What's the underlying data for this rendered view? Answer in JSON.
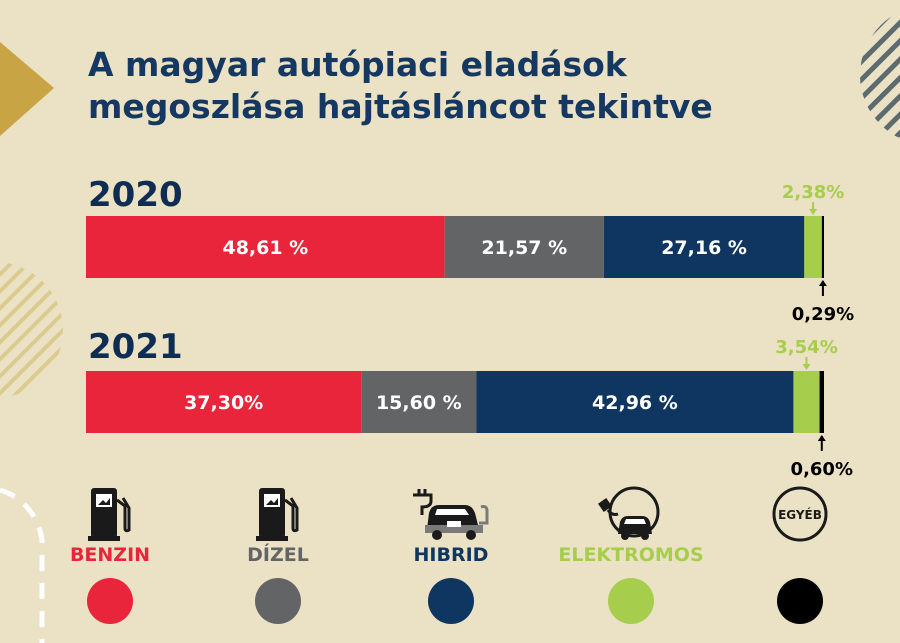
{
  "title_line1": "A magyar autópiaci eladások",
  "title_line2": "megoszlása hajtásláncot tekintve",
  "colors": {
    "benzin": "#e8253a",
    "dizel": "#636465",
    "hibrid": "#0f3660",
    "elektromos": "#a6cd4b",
    "egyeb": "#000000",
    "background": "#ebe1c4"
  },
  "chart_data": {
    "type": "bar",
    "orientation": "horizontal-stacked-100",
    "categories": [
      "2020",
      "2021"
    ],
    "series": [
      {
        "name": "BENZIN",
        "values": [
          48.61,
          37.3
        ],
        "labels": [
          "48,61 %",
          "37,30%"
        ],
        "color": "#e8253a"
      },
      {
        "name": "DÍZEL",
        "values": [
          21.57,
          15.6
        ],
        "labels": [
          "21,57 %",
          "15,60 %"
        ],
        "color": "#636465"
      },
      {
        "name": "HIBRID",
        "values": [
          27.16,
          42.96
        ],
        "labels": [
          "27,16 %",
          "42,96 %"
        ],
        "color": "#0f3660"
      },
      {
        "name": "ELEKTROMOS",
        "values": [
          2.38,
          3.54
        ],
        "labels": [
          "2,38%",
          "3,54%"
        ],
        "color": "#a6cd4b"
      },
      {
        "name": "EGYÉB",
        "values": [
          0.29,
          0.6
        ],
        "labels": [
          "0,29%",
          "0,60%"
        ],
        "color": "#000000"
      }
    ]
  },
  "legend": [
    {
      "label": "BENZIN",
      "icon": "fuel-pump-icon",
      "color": "#e8253a"
    },
    {
      "label": "DÍZEL",
      "icon": "fuel-pump-icon",
      "color": "#636465"
    },
    {
      "label": "HIBRID",
      "icon": "hybrid-car-icon",
      "color": "#0f3660"
    },
    {
      "label": "ELEKTROMOS",
      "icon": "electric-car-icon",
      "color": "#a6cd4b"
    },
    {
      "label": "EGYÉB",
      "icon": "other-badge-icon",
      "color": "#000000"
    }
  ],
  "egyeb_badge_text": "EGYÉB"
}
